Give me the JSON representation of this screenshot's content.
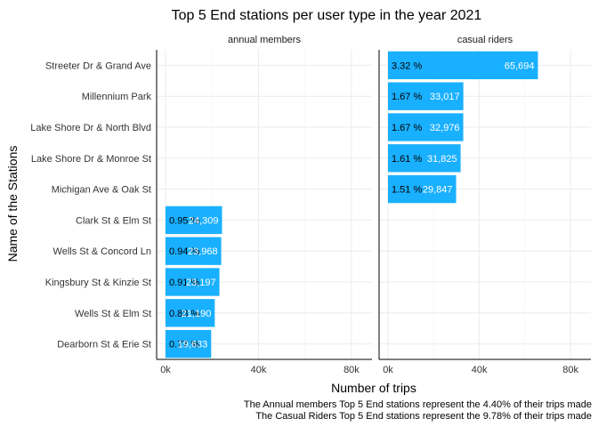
{
  "chart_data": {
    "type": "bar",
    "orientation": "horizontal",
    "title": "Top 5 End stations per user type in the year 2021",
    "xlabel": "Number of trips",
    "ylabel": "Name of the Stations",
    "xlim": [
      0,
      85000
    ],
    "x_ticks": [
      0,
      40000,
      80000
    ],
    "x_tick_labels": [
      "0k",
      "40k",
      "80k"
    ],
    "grid": true,
    "categories": [
      "Streeter Dr & Grand Ave",
      "Millennium Park",
      "Lake Shore Dr & North Blvd",
      "Lake Shore Dr & Monroe St",
      "Michigan Ave & Oak St",
      "Clark St & Elm St",
      "Wells St & Concord Ln",
      "Kingsbury St & Kinzie St",
      "Wells St & Elm St",
      "Dearborn St & Erie St"
    ],
    "panels": [
      {
        "name": "annual members",
        "bars": [
          {
            "category": "Clark St & Elm St",
            "value": 24309,
            "count_label": "24,309",
            "pct_label": "0.95 %"
          },
          {
            "category": "Wells St & Concord Ln",
            "value": 23968,
            "count_label": "23,968",
            "pct_label": "0.94 %"
          },
          {
            "category": "Kingsbury St & Kinzie St",
            "value": 23197,
            "count_label": "23,197",
            "pct_label": "0.91 %"
          },
          {
            "category": "Wells St & Elm St",
            "value": 21190,
            "count_label": "21,190",
            "pct_label": "0.83 %"
          },
          {
            "category": "Dearborn St & Erie St",
            "value": 19633,
            "count_label": "19,633",
            "pct_label": "0.77 %"
          }
        ]
      },
      {
        "name": "casual riders",
        "bars": [
          {
            "category": "Streeter Dr & Grand Ave",
            "value": 65694,
            "count_label": "65,694",
            "pct_label": "3.32 %"
          },
          {
            "category": "Millennium Park",
            "value": 33017,
            "count_label": "33,017",
            "pct_label": "1.67 %"
          },
          {
            "category": "Lake Shore Dr & North Blvd",
            "value": 32976,
            "count_label": "32,976",
            "pct_label": "1.67 %"
          },
          {
            "category": "Lake Shore Dr & Monroe St",
            "value": 31825,
            "count_label": "31,825",
            "pct_label": "1.61 %"
          },
          {
            "category": "Michigan Ave & Oak St",
            "value": 29847,
            "count_label": "29,847",
            "pct_label": "1.51 %"
          }
        ]
      }
    ],
    "bar_color": "#19b0ff",
    "captions": [
      "The Annual members Top 5 End stations represent the 4.40% of their trips made",
      "The Casual Riders Top 5 End stations represent the 9.78% of their trips made"
    ]
  }
}
